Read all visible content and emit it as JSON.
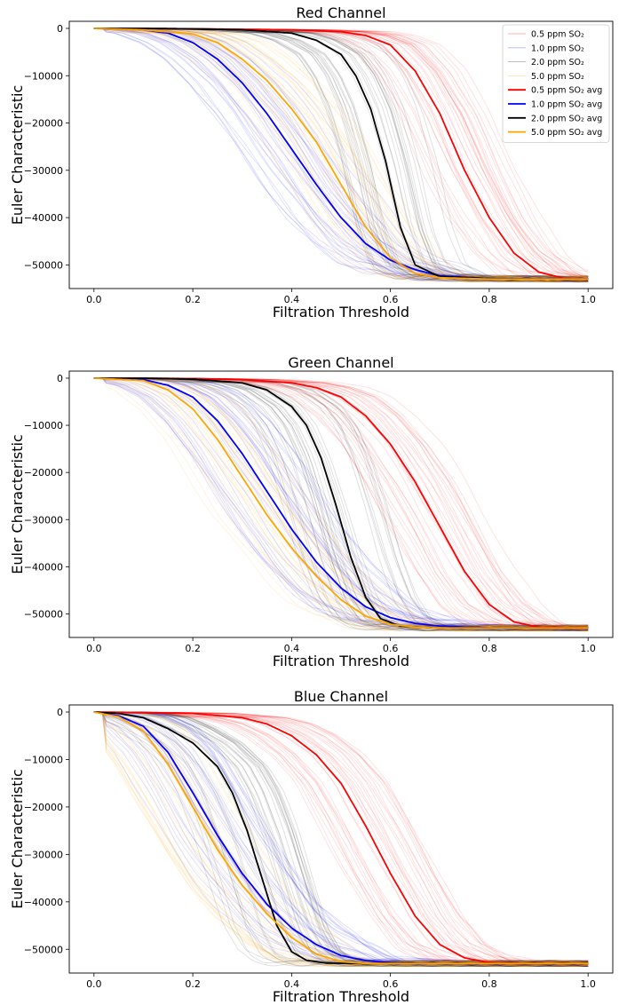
{
  "chart_data": [
    {
      "type": "line",
      "title": "Red Channel",
      "xlabel": "Filtration Threshold",
      "ylabel": "Euler Characteristic",
      "xlim": [
        -0.05,
        1.05
      ],
      "ylim": [
        -55000,
        1500
      ],
      "xticks": [
        "0.0",
        "0.2",
        "0.4",
        "0.6",
        "0.8",
        "1.0"
      ],
      "yticks": [
        "0",
        "−10000",
        "−20000",
        "−30000",
        "−40000",
        "−50000"
      ],
      "grid": false,
      "legend_position": "upper-right",
      "legend": [
        {
          "label": "0.5 ppm SO₂",
          "color": "#ff0000",
          "style": "faint"
        },
        {
          "label": "1.0 ppm SO₂",
          "color": "#0000ff",
          "style": "faint"
        },
        {
          "label": "2.0 ppm SO₂",
          "color": "#000000",
          "style": "faint"
        },
        {
          "label": "5.0 ppm SO₂",
          "color": "#ffa500",
          "style": "faint"
        },
        {
          "label": "0.5 ppm SO₂ avg",
          "color": "#ff0000",
          "style": "bold"
        },
        {
          "label": "1.0 ppm SO₂ avg",
          "color": "#0000ff",
          "style": "bold"
        },
        {
          "label": "2.0 ppm SO₂ avg",
          "color": "#000000",
          "style": "bold"
        },
        {
          "label": "5.0 ppm SO₂ avg",
          "color": "#ffa500",
          "style": "bold"
        }
      ],
      "series": [
        {
          "name": "0.5 ppm SO₂ avg",
          "color": "#ff0000",
          "x": [
            0,
            0.1,
            0.2,
            0.3,
            0.4,
            0.5,
            0.55,
            0.6,
            0.65,
            0.7,
            0.75,
            0.8,
            0.85,
            0.9,
            0.95,
            1.0
          ],
          "y": [
            0,
            0,
            -100,
            -200,
            -300,
            -700,
            -1500,
            -3500,
            -9000,
            -18000,
            -30000,
            -40000,
            -47500,
            -51500,
            -52800,
            -53000
          ]
        },
        {
          "name": "1.0 ppm SO₂ avg",
          "color": "#0000ff",
          "x": [
            0,
            0.1,
            0.15,
            0.2,
            0.25,
            0.3,
            0.35,
            0.4,
            0.45,
            0.5,
            0.55,
            0.6,
            0.65,
            0.7,
            0.8,
            1.0
          ],
          "y": [
            0,
            -300,
            -1000,
            -3000,
            -6500,
            -11500,
            -18000,
            -25500,
            -33000,
            -40000,
            -45500,
            -49000,
            -51000,
            -52300,
            -52900,
            -53000
          ]
        },
        {
          "name": "2.0 ppm SO₂ avg",
          "color": "#000000",
          "x": [
            0,
            0.1,
            0.2,
            0.3,
            0.4,
            0.45,
            0.5,
            0.53,
            0.56,
            0.59,
            0.62,
            0.65,
            0.7,
            0.8,
            1.0
          ],
          "y": [
            0,
            0,
            -100,
            -300,
            -1000,
            -2500,
            -5500,
            -10000,
            -17000,
            -28000,
            -42000,
            -50000,
            -52500,
            -52900,
            -53000
          ]
        },
        {
          "name": "5.0 ppm SO₂ avg",
          "color": "#ffa500",
          "x": [
            0,
            0.1,
            0.2,
            0.25,
            0.3,
            0.35,
            0.4,
            0.45,
            0.5,
            0.55,
            0.6,
            0.65,
            0.7,
            0.8,
            1.0
          ],
          "y": [
            0,
            -300,
            -1200,
            -3000,
            -6500,
            -11000,
            -17000,
            -24000,
            -33000,
            -42000,
            -48500,
            -51800,
            -52700,
            -53000,
            -53000
          ]
        }
      ]
    },
    {
      "type": "line",
      "title": "Green Channel",
      "xlabel": "Filtration Threshold",
      "ylabel": "Euler Characteristic",
      "xlim": [
        -0.05,
        1.05
      ],
      "ylim": [
        -55000,
        1500
      ],
      "xticks": [
        "0.0",
        "0.2",
        "0.4",
        "0.6",
        "0.8",
        "1.0"
      ],
      "yticks": [
        "0",
        "−10000",
        "−20000",
        "−30000",
        "−40000",
        "−50000"
      ],
      "grid": false,
      "series": [
        {
          "name": "0.5 ppm SO₂ avg",
          "color": "#ff0000",
          "x": [
            0,
            0.1,
            0.2,
            0.3,
            0.4,
            0.45,
            0.5,
            0.55,
            0.6,
            0.65,
            0.7,
            0.75,
            0.8,
            0.85,
            0.9,
            1.0
          ],
          "y": [
            0,
            0,
            -100,
            -300,
            -1000,
            -2000,
            -4000,
            -8000,
            -14000,
            -22000,
            -31500,
            -41000,
            -48000,
            -51700,
            -52800,
            -53000
          ]
        },
        {
          "name": "1.0 ppm SO₂ avg",
          "color": "#0000ff",
          "x": [
            0,
            0.1,
            0.15,
            0.2,
            0.25,
            0.3,
            0.35,
            0.4,
            0.45,
            0.5,
            0.55,
            0.6,
            0.65,
            0.7,
            0.8,
            1.0
          ],
          "y": [
            0,
            -300,
            -1500,
            -4000,
            -9000,
            -16000,
            -24000,
            -32000,
            -39000,
            -44500,
            -48500,
            -50800,
            -52000,
            -52600,
            -52950,
            -53000
          ]
        },
        {
          "name": "2.0 ppm SO₂ avg",
          "color": "#000000",
          "x": [
            0,
            0.1,
            0.2,
            0.3,
            0.35,
            0.4,
            0.43,
            0.46,
            0.49,
            0.52,
            0.55,
            0.58,
            0.62,
            0.7,
            1.0
          ],
          "y": [
            0,
            0,
            -200,
            -1000,
            -2500,
            -6000,
            -10000,
            -17000,
            -27000,
            -38000,
            -46500,
            -51000,
            -52600,
            -53000,
            -53000
          ]
        },
        {
          "name": "5.0 ppm SO₂ avg",
          "color": "#ffa500",
          "x": [
            0,
            0.1,
            0.15,
            0.2,
            0.25,
            0.3,
            0.35,
            0.4,
            0.45,
            0.5,
            0.55,
            0.6,
            0.65,
            0.7,
            1.0
          ],
          "y": [
            0,
            -500,
            -2500,
            -6500,
            -13000,
            -21000,
            -29000,
            -36000,
            -42000,
            -47000,
            -50500,
            -52200,
            -52800,
            -53000,
            -53000
          ]
        }
      ]
    },
    {
      "type": "line",
      "title": "Blue Channel",
      "xlabel": "Filtration Threshold",
      "ylabel": "Euler Characteristic",
      "xlim": [
        -0.05,
        1.05
      ],
      "ylim": [
        -55000,
        1500
      ],
      "xticks": [
        "0.0",
        "0.2",
        "0.4",
        "0.6",
        "0.8",
        "1.0"
      ],
      "yticks": [
        "0",
        "−10000",
        "−20000",
        "−30000",
        "−40000",
        "−50000"
      ],
      "grid": false,
      "series": [
        {
          "name": "0.5 ppm SO₂ avg",
          "color": "#ff0000",
          "x": [
            0,
            0.1,
            0.2,
            0.3,
            0.35,
            0.4,
            0.45,
            0.5,
            0.55,
            0.6,
            0.65,
            0.7,
            0.75,
            0.8,
            0.9,
            1.0
          ],
          "y": [
            0,
            -100,
            -300,
            -1200,
            -2500,
            -5000,
            -9000,
            -15000,
            -24000,
            -34000,
            -43000,
            -49000,
            -51800,
            -52800,
            -53000,
            -53000
          ]
        },
        {
          "name": "1.0 ppm SO₂ avg",
          "color": "#0000ff",
          "x": [
            0,
            0.05,
            0.1,
            0.15,
            0.2,
            0.25,
            0.3,
            0.35,
            0.4,
            0.45,
            0.5,
            0.55,
            0.6,
            0.7,
            1.0
          ],
          "y": [
            0,
            -800,
            -3000,
            -8500,
            -17000,
            -26000,
            -34000,
            -40500,
            -45500,
            -49000,
            -51300,
            -52400,
            -52800,
            -53000,
            -53000
          ]
        },
        {
          "name": "2.0 ppm SO₂ avg",
          "color": "#000000",
          "x": [
            0,
            0.05,
            0.1,
            0.15,
            0.2,
            0.25,
            0.28,
            0.31,
            0.34,
            0.37,
            0.4,
            0.43,
            0.47,
            0.55,
            1.0
          ],
          "y": [
            0,
            -300,
            -1200,
            -3500,
            -6500,
            -11500,
            -17000,
            -25000,
            -35000,
            -45000,
            -50500,
            -52300,
            -52900,
            -53000,
            -53000
          ]
        },
        {
          "name": "5.0 ppm SO₂ avg",
          "color": "#ffa500",
          "x": [
            0,
            0.05,
            0.1,
            0.15,
            0.2,
            0.25,
            0.3,
            0.35,
            0.4,
            0.45,
            0.5,
            0.55,
            1.0
          ],
          "y": [
            0,
            -1000,
            -4000,
            -11000,
            -20000,
            -29000,
            -36500,
            -42500,
            -47500,
            -51000,
            -52600,
            -53000,
            -53000
          ]
        }
      ]
    }
  ]
}
